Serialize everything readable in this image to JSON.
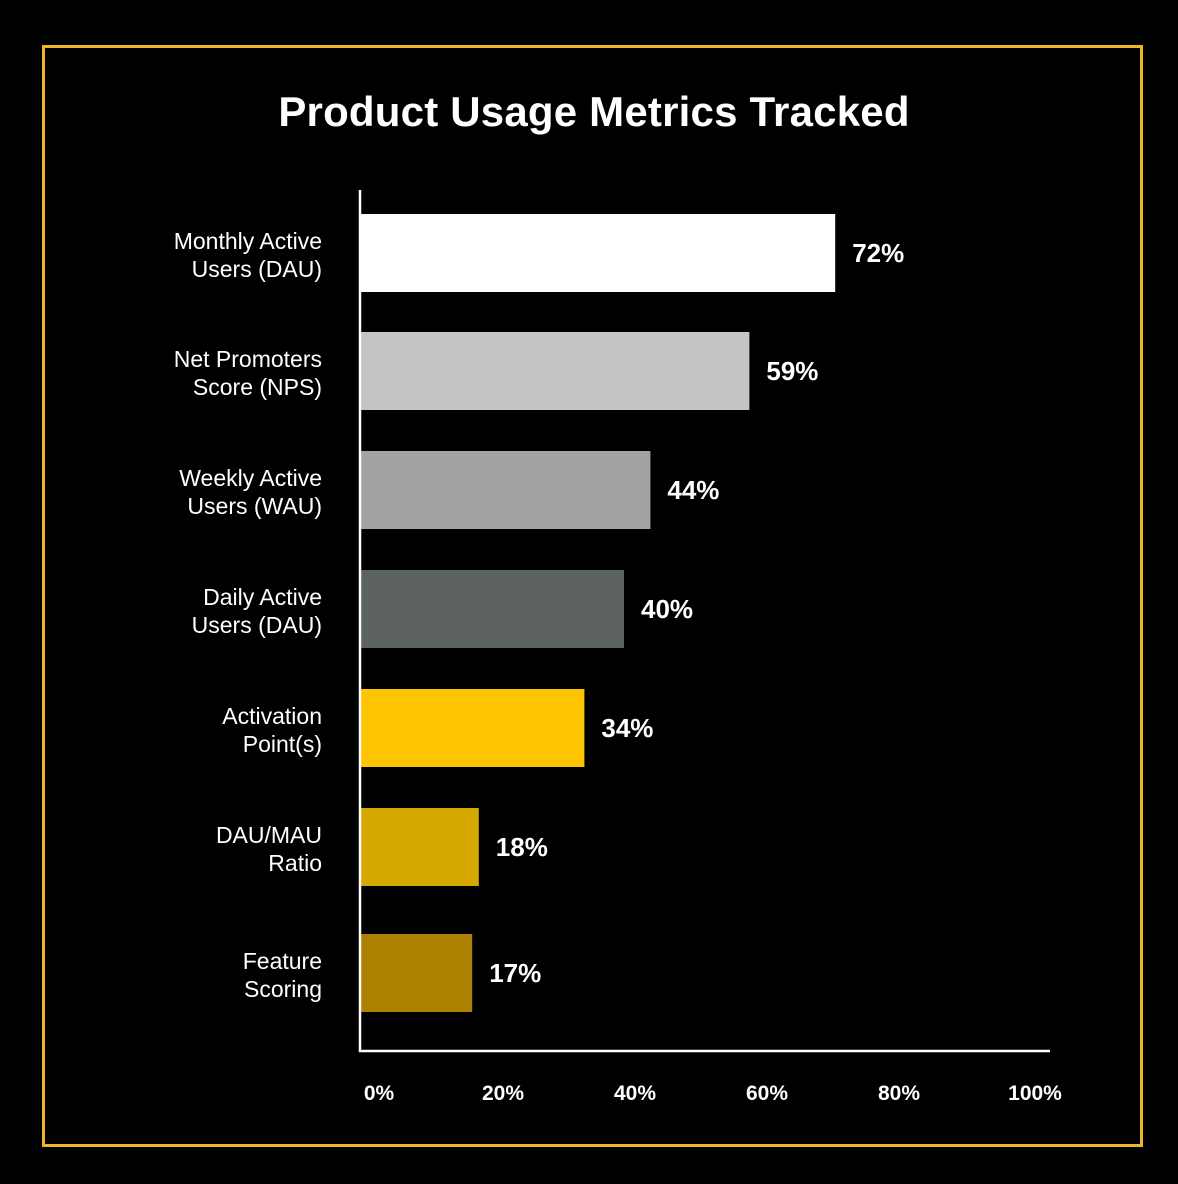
{
  "chart_data": {
    "type": "bar",
    "orientation": "horizontal",
    "title": "Product Usage Metrics Tracked",
    "categories": [
      "Monthly Active\nUsers (DAU)",
      "Net Promoters\nScore (NPS)",
      "Weekly Active\nUsers (WAU)",
      "Daily Active\nUsers (DAU)",
      "Activation\nPoint(s)",
      "DAU/MAU\nRatio",
      "Feature\nScoring"
    ],
    "values": [
      72,
      59,
      44,
      40,
      34,
      18,
      17
    ],
    "value_labels": [
      "72%",
      "59%",
      "44%",
      "40%",
      "34%",
      "18%",
      "17%"
    ],
    "bar_colors": [
      "#ffffff",
      "#c4c4c4",
      "#a3a3a3",
      "#5d6360",
      "#fcc500",
      "#d6a900",
      "#ac8000"
    ],
    "xlim": [
      0,
      100
    ],
    "x_ticks": [
      0,
      20,
      40,
      60,
      80,
      100
    ],
    "x_tick_labels": [
      "0%",
      "20%",
      "40%",
      "60%",
      "80%",
      "100%"
    ],
    "xlabel": "",
    "ylabel": "",
    "grid": false,
    "legend": "none"
  },
  "colors": {
    "background": "#000000",
    "frame": "#f0b429",
    "text": "#ffffff",
    "axis": "#ffffff"
  }
}
